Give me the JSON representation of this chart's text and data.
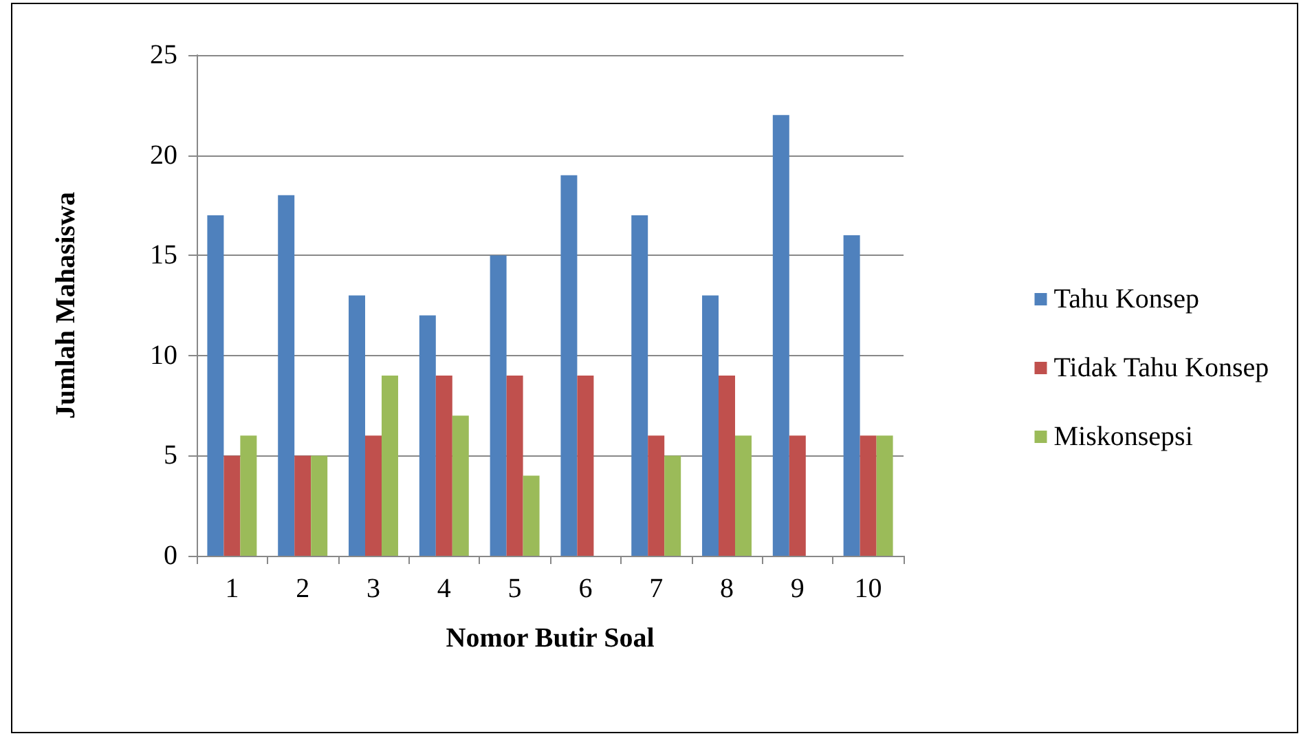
{
  "chart_data": {
    "type": "bar",
    "xlabel": "Nomor Butir Soal",
    "ylabel": "Jumlah Mahasiswa",
    "categories": [
      "1",
      "2",
      "3",
      "4",
      "5",
      "6",
      "7",
      "8",
      "9",
      "10"
    ],
    "series": [
      {
        "name": "Tahu Konsep",
        "color": "#4f81bd",
        "values": [
          17,
          18,
          13,
          12,
          15,
          19,
          17,
          13,
          22,
          16
        ]
      },
      {
        "name": "Tidak Tahu Konsep",
        "color": "#c0504d",
        "values": [
          5,
          5,
          6,
          9,
          9,
          9,
          6,
          9,
          6,
          6
        ]
      },
      {
        "name": "Miskonsepsi",
        "color": "#9bbb59",
        "values": [
          6,
          5,
          9,
          7,
          4,
          0,
          5,
          6,
          0,
          6
        ]
      }
    ],
    "ylim": [
      0,
      25
    ],
    "yticks": [
      0,
      5,
      10,
      15,
      20,
      25
    ],
    "grid": "y",
    "legend": "right"
  }
}
